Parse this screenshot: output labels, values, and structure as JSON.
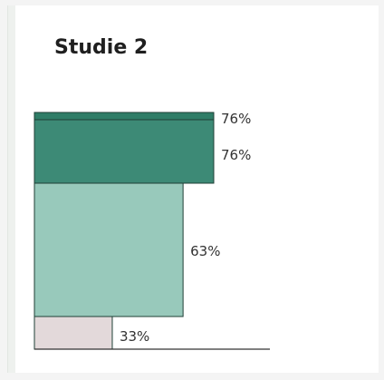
{
  "chart_data": {
    "type": "bar",
    "title": "Studie 2",
    "values": [
      33,
      63,
      76,
      76
    ],
    "labels": [
      "33%",
      "63%",
      "76%",
      "76%"
    ],
    "colors": [
      "#e3d9da",
      "#98c9bb",
      "#3d8a76",
      "#2f7d67"
    ],
    "xlim": [
      0,
      100
    ]
  }
}
